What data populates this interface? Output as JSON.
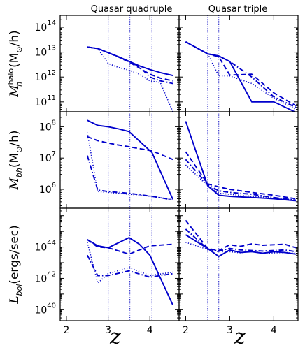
{
  "figure": {
    "col_titles": [
      "Quasar quadruple",
      "Quasar triple"
    ],
    "xlabel": "z",
    "row_ylabels": [
      {
        "main": "M",
        "sub": "h",
        "sup": "halo",
        "unit": "(M",
        "unit_sub": "⊙",
        "unit_end": "/h)"
      },
      {
        "main": "M",
        "sub": "bh",
        "sup": "",
        "unit": "(M",
        "unit_sub": "⊙",
        "unit_end": "/h)"
      },
      {
        "main": "L",
        "sub": "bol",
        "sup": "",
        "unit": "(ergs/sec)",
        "unit_sub": "",
        "unit_end": ""
      }
    ],
    "ytick_labels": [
      [
        {
          "base": "10",
          "exp": "11"
        },
        {
          "base": "10",
          "exp": "12"
        },
        {
          "base": "10",
          "exp": "13"
        },
        {
          "base": "10",
          "exp": "14"
        }
      ],
      [
        {
          "base": "10",
          "exp": "6"
        },
        {
          "base": "10",
          "exp": "7"
        },
        {
          "base": "10",
          "exp": "8"
        }
      ],
      [
        {
          "base": "10",
          "exp": "40"
        },
        {
          "base": "10",
          "exp": "42"
        },
        {
          "base": "10",
          "exp": "44"
        }
      ]
    ],
    "xtick_labels": [
      "2",
      "3",
      "4"
    ]
  },
  "chart_data": [
    {
      "type": "line",
      "panel": "quadruple-halo",
      "yscale": "log",
      "xlim": [
        1.85,
        4.7
      ],
      "ylim": [
        40000000000.0,
        300000000000000.0
      ],
      "color": "#0000cc",
      "vlines": [
        3.0,
        3.52,
        4.05
      ],
      "series": [
        {
          "style": "solid",
          "x": [
            2.5,
            2.75,
            3.0,
            3.25,
            3.5,
            3.75,
            4.0,
            4.25,
            4.55
          ],
          "y": [
            16000000000000.0,
            14000000000000.0,
            9500000000000.0,
            6500000000000.0,
            4300000000000.0,
            2800000000000.0,
            2000000000000.0,
            1500000000000.0,
            1150000000000.0
          ]
        },
        {
          "style": "dashed",
          "x": [
            2.5,
            2.75,
            3.0,
            3.25,
            3.5,
            3.75,
            4.0,
            4.25,
            4.55
          ],
          "y": [
            16000000000000.0,
            14000000000000.0,
            9500000000000.0,
            6300000000000.0,
            4000000000000.0,
            2300000000000.0,
            1300000000000.0,
            900000000000.0,
            700000000000.0
          ]
        },
        {
          "style": "dotted",
          "x": [
            2.5,
            2.75,
            3.0,
            3.25,
            3.5,
            3.75,
            4.0,
            4.25,
            4.55
          ],
          "y": [
            16000000000000.0,
            14000000000000.0,
            3500000000000.0,
            2400000000000.0,
            1900000000000.0,
            1300000000000.0,
            700000000000.0,
            600000000000.0,
            40000000000.0
          ]
        },
        {
          "style": "dashdot",
          "x": [
            2.5,
            2.75,
            3.0,
            3.25,
            3.5,
            3.75,
            4.0,
            4.25,
            4.55
          ],
          "y": [
            16000000000000.0,
            14000000000000.0,
            9500000000000.0,
            6400000000000.0,
            4200000000000.0,
            2600000000000.0,
            1000000000000.0,
            700000000000.0,
            550000000000.0
          ]
        }
      ]
    },
    {
      "type": "line",
      "panel": "triple-halo",
      "yscale": "log",
      "xlim": [
        1.85,
        4.55
      ],
      "ylim": [
        40000000000.0,
        300000000000000.0
      ],
      "color": "#0000cc",
      "vlines": [
        2.5,
        2.75
      ],
      "series": [
        {
          "style": "solid",
          "x": [
            2.0,
            2.5,
            2.75,
            3.0,
            3.5,
            4.0,
            4.5
          ],
          "y": [
            26000000000000.0,
            8500000000000.0,
            7000000000000.0,
            4200000000000.0,
            100000000000.0,
            100000000000.0,
            38000000000.0
          ]
        },
        {
          "style": "dashed",
          "x": [
            2.0,
            2.5,
            2.75,
            3.0,
            3.5,
            4.0,
            4.5
          ],
          "y": [
            26000000000000.0,
            8500000000000.0,
            6500000000000.0,
            1200000000000.0,
            1300000000000.0,
            230000000000.0,
            70000000000.0
          ]
        },
        {
          "style": "dotted",
          "x": [
            2.0,
            2.5,
            2.75,
            3.0,
            3.5,
            4.0,
            4.5
          ],
          "y": [
            26000000000000.0,
            8500000000000.0,
            1100000000000.0,
            1100000000000.0,
            550000000000.0,
            140000000000.0,
            50000000000.0
          ]
        },
        {
          "style": "dashdot",
          "x": [
            2.0,
            2.5,
            2.75,
            3.0,
            3.5,
            4.0,
            4.5
          ],
          "y": [
            26000000000000.0,
            8500000000000.0,
            7000000000000.0,
            4200000000000.0,
            1000000000000.0,
            160000000000.0,
            60000000000.0
          ]
        }
      ]
    },
    {
      "type": "line",
      "panel": "quadruple-bh",
      "yscale": "log",
      "xlim": [
        1.85,
        4.7
      ],
      "ylim": [
        250000.0,
        300000000.0
      ],
      "color": "#0000cc",
      "vlines": [
        3.0,
        3.52,
        4.05
      ],
      "series": [
        {
          "style": "solid",
          "x": [
            2.5,
            2.75,
            3.0,
            3.25,
            3.5,
            4.05,
            4.55
          ],
          "y": [
            160000000.0,
            110000000.0,
            100000000.0,
            85000000.0,
            70000000.0,
            15000000.0,
            480000.0
          ]
        },
        {
          "style": "dashed",
          "x": [
            2.5,
            2.75,
            3.0,
            3.25,
            3.5,
            4.05,
            4.55
          ],
          "y": [
            48000000.0,
            36000000.0,
            30000000.0,
            26000000.0,
            23000000.0,
            17000000.0,
            9000000.0
          ]
        },
        {
          "style": "dotted",
          "x": [
            2.5,
            2.75,
            3.0,
            3.25,
            3.5,
            4.05,
            4.55
          ],
          "y": [
            65000000.0,
            850000.0,
            800000.0,
            750000.0,
            700000.0,
            600000.0,
            460000.0
          ]
        },
        {
          "style": "dashdot",
          "x": [
            2.5,
            2.75,
            3.0,
            3.25,
            3.5,
            4.05,
            4.55
          ],
          "y": [
            12000000.0,
            950000.0,
            850000.0,
            800000.0,
            750000.0,
            600000.0,
            460000.0
          ]
        }
      ]
    },
    {
      "type": "line",
      "panel": "triple-bh",
      "yscale": "log",
      "xlim": [
        1.85,
        4.55
      ],
      "ylim": [
        250000.0,
        300000000.0
      ],
      "color": "#0000cc",
      "vlines": [
        2.5,
        2.75
      ],
      "series": [
        {
          "style": "solid",
          "x": [
            2.0,
            2.5,
            2.75,
            3.0,
            3.5,
            4.0,
            4.5
          ],
          "y": [
            150000000.0,
            1300000.0,
            650000.0,
            600000.0,
            550000.0,
            500000.0,
            430000.0
          ]
        },
        {
          "style": "dashed",
          "x": [
            2.0,
            2.5,
            2.75,
            3.0,
            3.5,
            4.0,
            4.5
          ],
          "y": [
            16000000.0,
            1500000.0,
            1200000.0,
            1000000.0,
            800000.0,
            650000.0,
            500000.0
          ]
        },
        {
          "style": "dotted",
          "x": [
            2.0,
            2.5,
            2.75,
            3.0,
            3.5,
            4.0,
            4.5
          ],
          "y": [
            6000000.0,
            1300000.0,
            750000.0,
            700000.0,
            600000.0,
            550000.0,
            450000.0
          ]
        },
        {
          "style": "dashdot",
          "x": [
            2.0,
            2.5,
            2.75,
            3.0,
            3.5,
            4.0,
            4.5
          ],
          "y": [
            9000000.0,
            1400000.0,
            900000.0,
            800000.0,
            700000.0,
            550000.0,
            450000.0
          ]
        }
      ]
    },
    {
      "type": "line",
      "panel": "quadruple-lbol",
      "yscale": "log",
      "xlim": [
        1.85,
        4.7
      ],
      "ylim": [
        2e+39,
        3e+46
      ],
      "color": "#0000cc",
      "vlines": [
        3.0,
        3.52,
        4.05
      ],
      "series": [
        {
          "style": "solid",
          "x": [
            2.5,
            2.75,
            3.0,
            3.5,
            3.75,
            4.0,
            4.55
          ],
          "y": [
            3e+44,
            1.2e+44,
            9e+43,
            4e+44,
            1.5e+44,
            3e+43,
            2e+40
          ]
        },
        {
          "style": "dashed",
          "x": [
            2.5,
            2.75,
            3.0,
            3.5,
            4.0,
            4.55
          ],
          "y": [
            3e+44,
            1e+44,
            9e+43,
            3.5e+43,
            1.2e+44,
            1.5e+44
          ]
        },
        {
          "style": "dotted",
          "x": [
            2.5,
            2.75,
            3.0,
            3.5,
            4.0,
            4.55
          ],
          "y": [
            2e+44,
            5e+41,
            2e+42,
            5e+42,
            1.5e+42,
            2.5e+42
          ]
        },
        {
          "style": "dashdot",
          "x": [
            2.5,
            2.75,
            3.0,
            3.5,
            4.0,
            4.55
          ],
          "y": [
            3e+43,
            1.5e+42,
            1.5e+42,
            3e+42,
            1.2e+42,
            2e+42
          ]
        }
      ]
    },
    {
      "type": "line",
      "panel": "triple-lbol",
      "yscale": "log",
      "xlim": [
        1.85,
        4.55
      ],
      "ylim": [
        2e+39,
        3e+46
      ],
      "color": "#0000cc",
      "vlines": [
        2.5,
        2.75
      ],
      "series": [
        {
          "style": "solid",
          "x": [
            2.0,
            2.5,
            2.75,
            3.0,
            3.25,
            3.5,
            3.75,
            4.0,
            4.25,
            4.5
          ],
          "y": [
            6e+44,
            8e+43,
            2.5e+43,
            6.5e+43,
            4.5e+43,
            5e+43,
            4e+43,
            5e+43,
            4.5e+43,
            3.5e+43
          ]
        },
        {
          "style": "dashed",
          "x": [
            2.0,
            2.5,
            2.75,
            3.0,
            3.25,
            3.5,
            3.75,
            4.0,
            4.25,
            4.5
          ],
          "y": [
            5e+45,
            8e+43,
            6e+43,
            1.4e+44,
            1.1e+44,
            1.6e+44,
            1.3e+44,
            1.4e+44,
            1.5e+44,
            9e+43
          ]
        },
        {
          "style": "dotted",
          "x": [
            2.0,
            2.5,
            2.75,
            3.0,
            3.25,
            3.5,
            3.75,
            4.0,
            4.25,
            4.5
          ],
          "y": [
            2e+44,
            7e+43,
            5e+43,
            5e+43,
            4.2e+43,
            6e+43,
            3.8e+43,
            4.2e+43,
            4.5e+43,
            4e+43
          ]
        },
        {
          "style": "dashdot",
          "x": [
            2.0,
            2.5,
            2.75,
            3.0,
            3.25,
            3.5,
            3.75,
            4.0,
            4.25,
            4.5
          ],
          "y": [
            1.4e+45,
            7.5e+43,
            5.5e+43,
            8e+43,
            6.5e+43,
            6e+43,
            5.5e+43,
            6e+43,
            6.5e+43,
            5e+43
          ]
        }
      ]
    }
  ]
}
